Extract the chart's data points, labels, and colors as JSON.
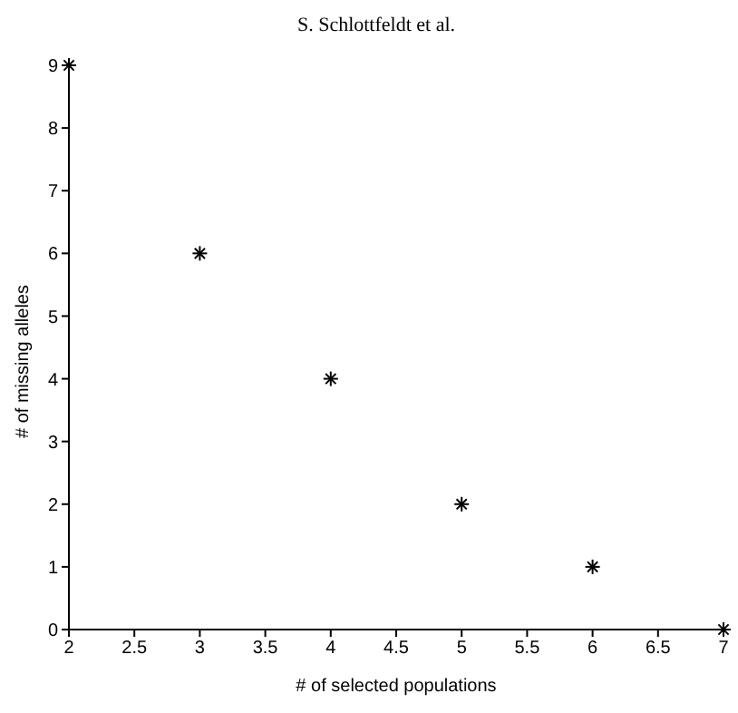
{
  "chart_data": {
    "type": "scatter",
    "annotations": [
      "S. Schlottfeldt et al."
    ],
    "xlabel": "# of selected populations",
    "ylabel": "# of missing alleles",
    "x": [
      2,
      3,
      4,
      5,
      6,
      7
    ],
    "series": [
      {
        "color": "#000000",
        "values": [
          9,
          6,
          4,
          2,
          1,
          0
        ]
      }
    ],
    "xlim": [
      2,
      7
    ],
    "xticks": [
      2,
      2.5,
      3,
      3.5,
      4,
      4.5,
      5,
      5.5,
      6,
      6.5,
      7
    ],
    "ylim": [
      0,
      9
    ],
    "yticks": [
      0,
      1,
      2,
      3,
      4,
      5,
      6,
      7,
      8,
      9
    ],
    "marker": "cross",
    "grid": false,
    "legend": false
  }
}
